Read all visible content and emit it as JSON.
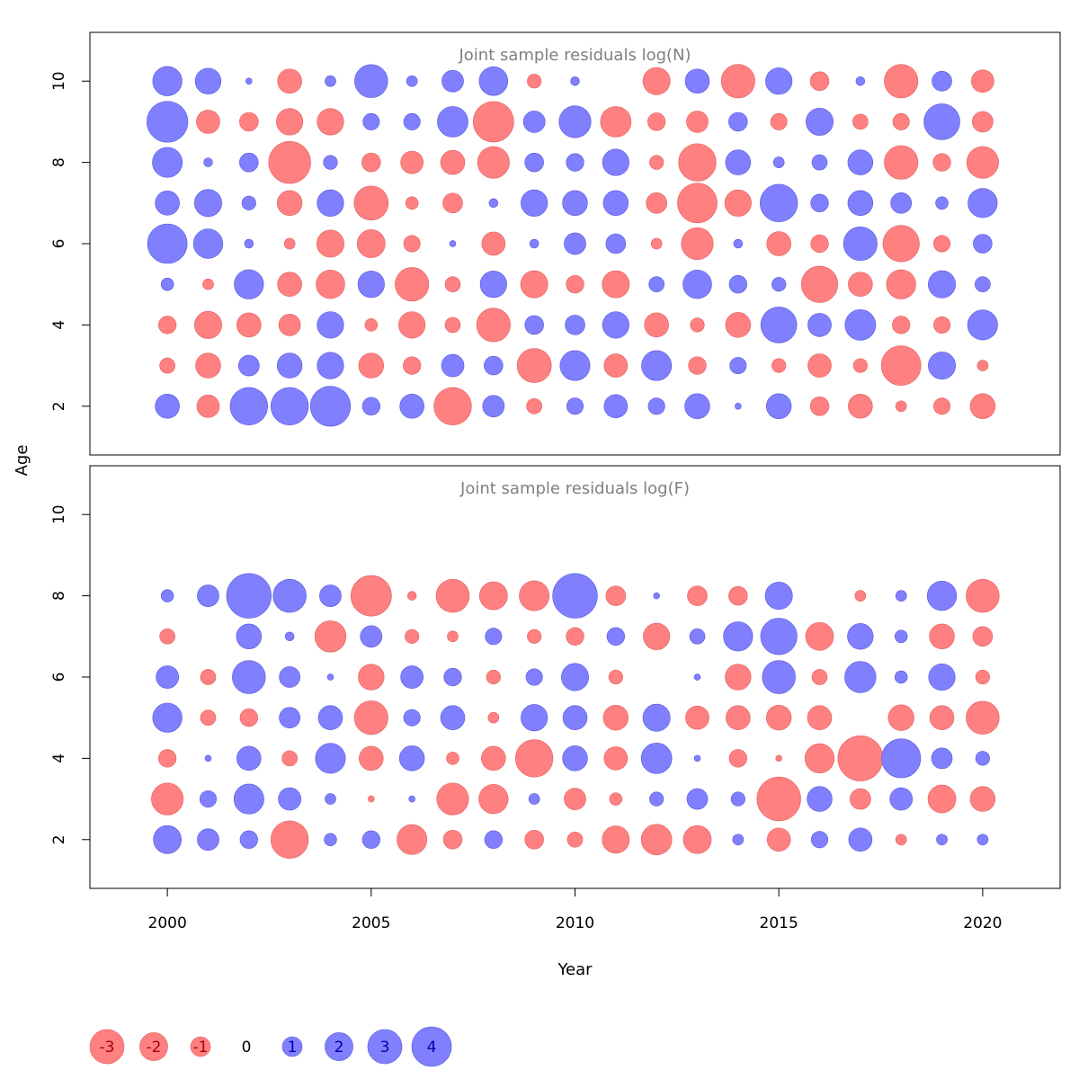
{
  "chart_data": [
    {
      "type": "scatter",
      "subtype": "bubble",
      "title": "Joint sample residuals log(N)",
      "xlabel": "Year",
      "ylabel": "Age",
      "xlim": [
        1998.1,
        2021.9
      ],
      "ylim": [
        0.8,
        11.2
      ],
      "xticks": [
        2000,
        2005,
        2010,
        2015,
        2020
      ],
      "yticks": [
        2,
        4,
        6,
        8,
        10
      ],
      "years": [
        2000,
        2001,
        2002,
        2003,
        2004,
        2005,
        2006,
        2007,
        2008,
        2009,
        2010,
        2011,
        2012,
        2013,
        2014,
        2015,
        2016,
        2017,
        2018,
        2019,
        2020
      ],
      "ages": [
        2,
        3,
        4,
        5,
        6,
        7,
        8,
        9,
        10
      ],
      "residuals": [
        [
          1.5,
          -1.3,
          3.6,
          3.6,
          4.1,
          0.8,
          1.5,
          -3.6,
          1.2,
          -0.6,
          0.7,
          1.4,
          0.7,
          1.6,
          0.1,
          1.6,
          -0.9,
          -1.5,
          -0.3,
          -0.7,
          -1.6
        ],
        [
          -0.6,
          -1.6,
          1.1,
          1.6,
          1.8,
          -1.6,
          -0.8,
          1.3,
          0.9,
          -3.0,
          2.3,
          -1.4,
          2.3,
          -0.8,
          0.7,
          -0.5,
          -1.4,
          -0.5,
          -4.0,
          1.9,
          -0.3
        ],
        [
          -0.8,
          -1.9,
          -1.5,
          -1.2,
          1.8,
          -0.4,
          -1.8,
          -0.6,
          -2.9,
          0.9,
          1.0,
          1.8,
          -1.5,
          -0.5,
          -1.6,
          3.3,
          1.4,
          2.4,
          -0.8,
          -0.7,
          2.3
        ],
        [
          0.4,
          -0.3,
          2.2,
          -1.5,
          -2.1,
          1.8,
          -2.9,
          -0.6,
          1.8,
          -1.9,
          -0.8,
          -1.9,
          0.6,
          2.1,
          0.8,
          0.5,
          -3.4,
          -1.5,
          -2.2,
          1.9,
          0.6
        ],
        [
          4.0,
          2.2,
          0.2,
          -0.3,
          -1.9,
          -2.0,
          -0.7,
          0.1,
          -1.4,
          0.2,
          1.2,
          1.0,
          -0.3,
          -2.6,
          0.2,
          -1.5,
          -0.8,
          2.9,
          -3.4,
          -0.7,
          0.9
        ],
        [
          1.5,
          1.9,
          0.5,
          -1.6,
          1.8,
          -3.0,
          -0.4,
          -1.0,
          0.2,
          1.8,
          1.6,
          1.6,
          -1.1,
          -4.0,
          -1.8,
          3.6,
          0.8,
          1.6,
          1.1,
          0.4,
          2.2
        ],
        [
          2.3,
          0.2,
          0.9,
          -4.5,
          0.5,
          -0.9,
          -1.3,
          -1.5,
          -2.6,
          0.9,
          0.8,
          1.8,
          -0.5,
          -3.6,
          1.6,
          0.3,
          0.6,
          1.6,
          -2.9,
          -0.8,
          -2.6
        ],
        [
          4.3,
          -1.4,
          -0.9,
          -1.8,
          -1.8,
          0.7,
          0.7,
          2.4,
          -4.2,
          1.2,
          2.6,
          -2.4,
          -0.8,
          -1.2,
          0.9,
          -0.7,
          1.9,
          -0.6,
          -0.7,
          3.3,
          -1.1
        ],
        [
          2.2,
          1.7,
          0.1,
          -1.5,
          0.3,
          2.8,
          0.3,
          1.2,
          2.1,
          -0.5,
          0.2,
          0.0,
          -1.9,
          1.5,
          -2.9,
          1.8,
          -0.9,
          0.2,
          -2.9,
          1.0,
          -1.3
        ]
      ]
    },
    {
      "type": "scatter",
      "subtype": "bubble",
      "title": "Joint sample residuals log(F)",
      "xlabel": "Year",
      "ylabel": "Age",
      "xlim": [
        1998.1,
        2021.9
      ],
      "ylim": [
        0.8,
        11.2
      ],
      "xticks": [
        2000,
        2005,
        2010,
        2015,
        2020
      ],
      "yticks": [
        2,
        4,
        6,
        8,
        10
      ],
      "years": [
        2000,
        2001,
        2002,
        2003,
        2004,
        2005,
        2006,
        2007,
        2008,
        2009,
        2010,
        2011,
        2012,
        2013,
        2014,
        2015,
        2016,
        2017,
        2018,
        2019,
        2020
      ],
      "ages": [
        2,
        3,
        4,
        5,
        6,
        7,
        8
      ],
      "residuals": [
        [
          2.0,
          1.2,
          0.8,
          -3.6,
          0.4,
          0.8,
          -2.3,
          -0.9,
          0.8,
          -0.9,
          -0.6,
          -1.9,
          -2.4,
          -2.0,
          0.3,
          -1.4,
          0.7,
          1.4,
          -0.3,
          0.3,
          0.3
        ],
        [
          -2.6,
          0.7,
          2.3,
          1.3,
          0.3,
          -0.1,
          0.1,
          -2.6,
          -2.2,
          0.3,
          -1.2,
          -0.4,
          0.5,
          1.1,
          0.5,
          -4.9,
          1.6,
          -1.1,
          1.3,
          -2.0,
          -1.6
        ],
        [
          -0.8,
          0.1,
          1.5,
          -0.6,
          2.3,
          -1.5,
          1.6,
          -0.4,
          -1.5,
          -3.6,
          1.6,
          -1.4,
          2.4,
          0.1,
          -0.8,
          -0.1,
          -2.2,
          -5.2,
          3.9,
          1.1,
          0.5
        ],
        [
          2.2,
          -0.6,
          -0.8,
          1.1,
          1.5,
          -2.9,
          0.7,
          1.5,
          -0.3,
          1.8,
          1.5,
          -1.6,
          1.9,
          -1.4,
          -1.5,
          -1.6,
          -1.5,
          0.0,
          -1.7,
          -1.5,
          -2.8
        ],
        [
          1.3,
          -0.6,
          2.8,
          1.1,
          0.1,
          -1.7,
          1.3,
          0.8,
          -0.5,
          0.7,
          1.9,
          -0.5,
          -0.0,
          0.1,
          -1.7,
          2.8,
          -0.6,
          2.5,
          0.4,
          1.8,
          -0.5
        ],
        [
          -0.6,
          0.0,
          1.6,
          0.2,
          -2.5,
          1.2,
          -0.5,
          -0.3,
          0.7,
          -0.5,
          -0.8,
          0.8,
          -1.8,
          0.6,
          2.2,
          3.4,
          -2.0,
          1.7,
          0.4,
          -1.6,
          -1.0
        ],
        [
          0.4,
          1.2,
          5.1,
          2.8,
          1.2,
          -4.2,
          -0.2,
          -2.8,
          -2.0,
          -2.3,
          5.1,
          -1.0,
          0.1,
          -1.0,
          -0.9,
          1.9,
          0.0,
          -0.3,
          0.3,
          2.2,
          -2.8
        ]
      ]
    }
  ],
  "legend": {
    "position": "bottom-left",
    "items": [
      {
        "label": "-3",
        "value": -3
      },
      {
        "label": "-2",
        "value": -2
      },
      {
        "label": "-1",
        "value": -1
      },
      {
        "label": "0",
        "value": 0
      },
      {
        "label": "1",
        "value": 1
      },
      {
        "label": "2",
        "value": 2
      },
      {
        "label": "3",
        "value": 3
      },
      {
        "label": "4",
        "value": 4
      }
    ]
  },
  "colors": {
    "negative": "#ff8080",
    "negative_stroke": "#e06060",
    "positive": "#8080ff",
    "positive_stroke": "#5555dd",
    "negative_text": "#aa0000",
    "positive_text": "#0000aa",
    "title_text": "#808080",
    "axis": "#000000"
  }
}
